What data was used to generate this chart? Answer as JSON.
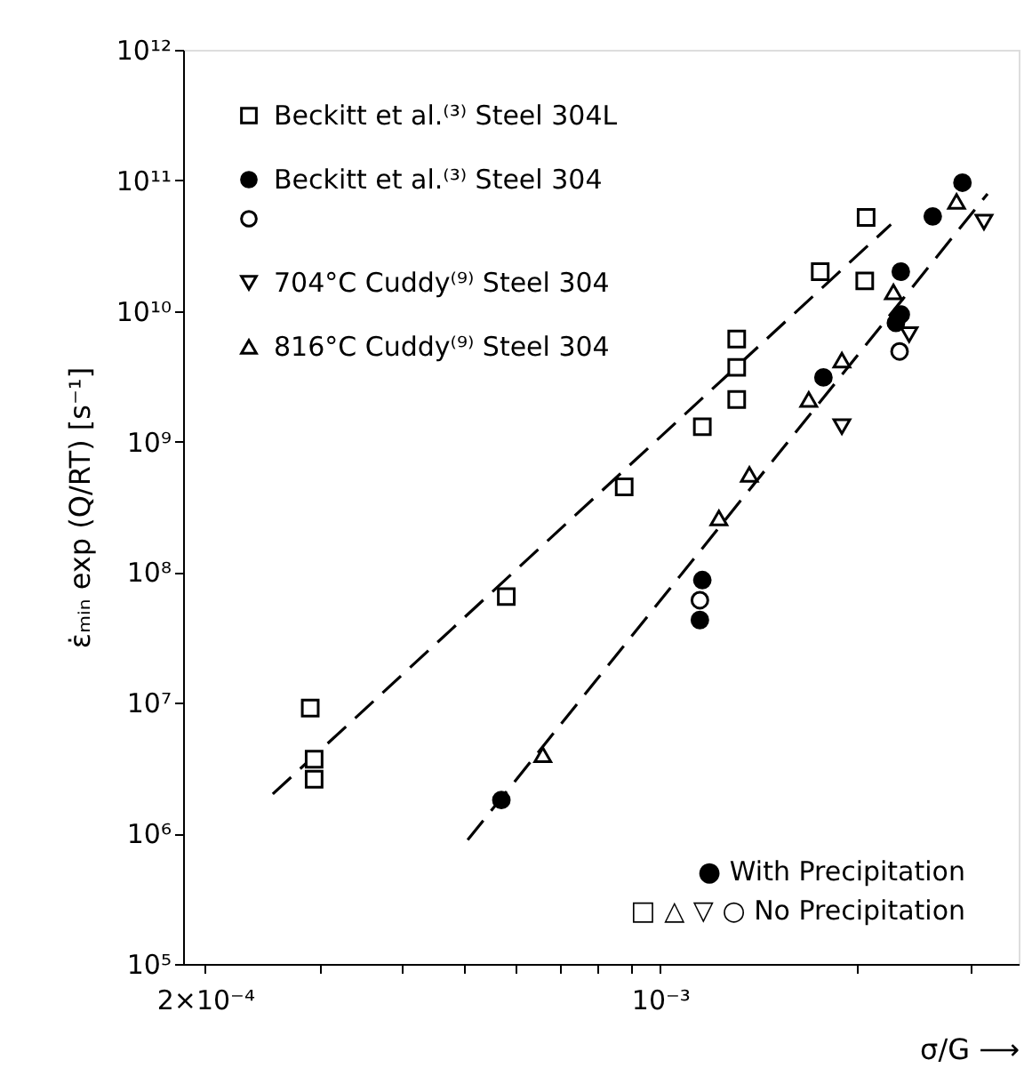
{
  "chart_data": {
    "type": "scatter",
    "xlabel": "σ/G ⟶",
    "ylabel": "ε̇ₘᵢₙ exp (Q/RT) [s⁻¹]",
    "log": "xy",
    "grid": false,
    "xlim": [
      0.000185,
      0.00355
    ],
    "ylim": [
      100000.0,
      1000000000000.0
    ],
    "xticks": [
      {
        "value": 0.0002,
        "label": "2×10⁻⁴"
      },
      {
        "value": 0.0003,
        "label": null
      },
      {
        "value": 0.0004,
        "label": null
      },
      {
        "value": 0.0005,
        "label": null
      },
      {
        "value": 0.0006,
        "label": null
      },
      {
        "value": 0.0007,
        "label": null
      },
      {
        "value": 0.0008,
        "label": null
      },
      {
        "value": 0.0009,
        "label": null
      },
      {
        "value": 0.001,
        "label": "10⁻³"
      },
      {
        "value": 0.002,
        "label": null
      },
      {
        "value": 0.003,
        "label": null
      }
    ],
    "yticks": [
      {
        "value": 100000.0,
        "label": "10⁵"
      },
      {
        "value": 1000000.0,
        "label": "10⁶"
      },
      {
        "value": 10000000.0,
        "label": "10⁷"
      },
      {
        "value": 100000000.0,
        "label": "10⁸"
      },
      {
        "value": 1000000000.0,
        "label": "10⁹"
      },
      {
        "value": 10000000000.0,
        "label": "10¹⁰"
      },
      {
        "value": 100000000000.0,
        "label": "10¹¹"
      },
      {
        "value": 1000000000000.0,
        "label": "10¹²"
      }
    ],
    "legend": "top left",
    "series": [
      {
        "name": "Beckitt et al.⁽³⁾ Steel 304L",
        "color": "#000000",
        "marker": "square",
        "x": [
          0.00207,
          0.00176,
          0.00206,
          0.00131,
          0.00131,
          0.00131,
          0.00116,
          0.00088,
          0.00058,
          0.00029,
          0.000294,
          0.000294
        ],
        "values": [
          52000000000.0,
          20000000000.0,
          17000000000.0,
          6100000000.0,
          3700000000.0,
          2100000000.0,
          1300000000.0,
          450000000.0,
          65000000.0,
          9100000.0,
          3700000.0,
          2600000.0
        ]
      },
      {
        "name": "Beckitt et al.⁽³⁾ Steel 304",
        "color": "#000000",
        "marker": "filled_circle",
        "x": [
          0.00291,
          0.00262,
          0.00234,
          0.00234,
          0.0023,
          0.00178,
          0.00116,
          0.00115,
          0.00057
        ],
        "values": [
          96000000000.0,
          53000000000.0,
          20000000000.0,
          9400000000.0,
          8100000000.0,
          3100000000.0,
          87000000.0,
          43000000.0,
          1800000.0
        ]
      },
      {
        "color": "#000000",
        "marker": "circle",
        "x": [
          0.00233,
          0.00115
        ],
        "values": [
          4900000000.0,
          61000000.0
        ]
      },
      {
        "name": "704°C Cuddy⁽⁹⁾ Steel 304",
        "color": "#000000",
        "marker": "triangle-down",
        "x": [
          0.00314,
          0.00241,
          0.0019
        ],
        "values": [
          48000000000.0,
          6600000000.0,
          1300000000.0
        ]
      },
      {
        "name": "816°C Cuddy⁽⁹⁾ Steel 304",
        "color": "#000000",
        "marker": "triangle",
        "x": [
          0.00285,
          0.00228,
          0.0019,
          0.00169,
          0.00137,
          0.00123,
          0.00066
        ],
        "values": [
          69000000000.0,
          14000000000.0,
          4200000000.0,
          2100000000.0,
          560000000.0,
          260000000.0,
          4000000.0
        ]
      },
      {
        "type": "line",
        "color": "#000000",
        "line_style": "dashed",
        "x": [
          0.000254,
          0.00226
        ],
        "values": [
          2000000.0,
          46000000000.0
        ]
      },
      {
        "type": "line",
        "color": "#000000",
        "line_style": "dashed",
        "x": [
          0.000506,
          0.00318
        ],
        "values": [
          890000.0,
          79000000000.0
        ]
      }
    ],
    "annotations": [
      "●  With Precipitation",
      "□ △ ▽ ○  No Precipitation"
    ]
  }
}
